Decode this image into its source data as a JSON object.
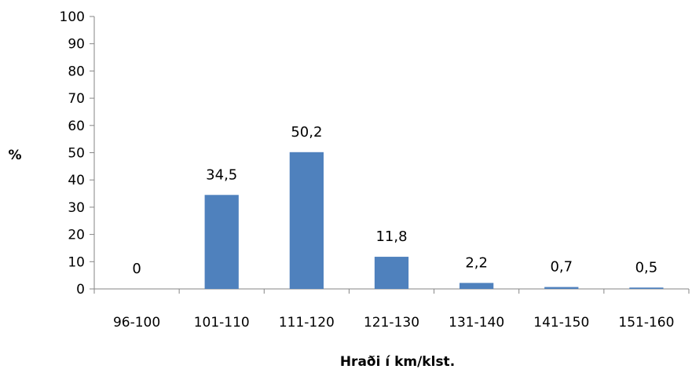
{
  "chart_data": {
    "type": "bar",
    "categories": [
      "96-100",
      "101-110",
      "111-120",
      "121-130",
      "131-140",
      "141-150",
      "151-160"
    ],
    "values": [
      0,
      34.5,
      50.2,
      11.8,
      2.2,
      0.7,
      0.5
    ],
    "data_labels": [
      "0",
      "34,5",
      "50,2",
      "11,8",
      "2,2",
      "0,7",
      "0,5"
    ],
    "xlabel": "Hraði í km/klst.",
    "ylabel": "%",
    "ylim": [
      0,
      100
    ],
    "yticks": [
      0,
      10,
      20,
      30,
      40,
      50,
      60,
      70,
      80,
      90,
      100
    ],
    "grid": false,
    "legend": "none",
    "bar_color": "#4F81BD",
    "axis_color": "#868686"
  }
}
